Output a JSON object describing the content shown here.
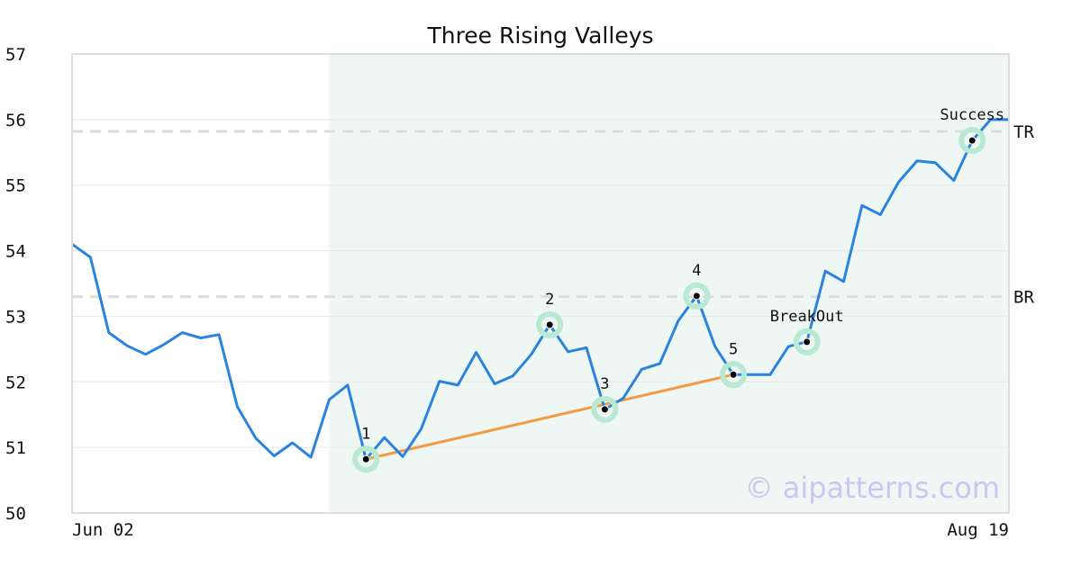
{
  "chart_data": {
    "type": "line",
    "title": "Three Rising Valleys",
    "xlabel": "",
    "ylabel": "",
    "ylim": [
      50,
      57
    ],
    "yticks": [
      "50",
      "51",
      "52",
      "53",
      "54",
      "55",
      "56",
      "57"
    ],
    "x_tick_labels": [
      "Jun 02",
      "Aug 19"
    ],
    "grid": true,
    "series": [
      {
        "color": "#2b83e0",
        "values": [
          54.1,
          53.9,
          52.75,
          52.55,
          52.42,
          52.57,
          52.75,
          52.67,
          52.72,
          51.62,
          51.14,
          50.87,
          51.07,
          50.85,
          51.73,
          51.95,
          50.82,
          51.15,
          50.86,
          51.28,
          52.01,
          51.95,
          52.45,
          51.97,
          52.09,
          52.42,
          52.87,
          52.46,
          52.52,
          51.58,
          51.75,
          52.19,
          52.28,
          52.93,
          53.31,
          52.54,
          52.11,
          52.11,
          52.11,
          52.54,
          52.61,
          53.69,
          53.53,
          54.69,
          54.55,
          55.05,
          55.37,
          55.34,
          55.07,
          55.68,
          56.0,
          56.0
        ]
      }
    ],
    "highlight_region": {
      "start_index": 14,
      "end_index": 51,
      "color": "#eef7f3"
    },
    "levels": [
      {
        "label": "TR",
        "value": 55.82
      },
      {
        "label": "BR",
        "value": 53.3
      }
    ],
    "trendline": {
      "from_index": 16,
      "to_index": 36,
      "color": "#f39a45"
    },
    "markers": [
      {
        "label": "1",
        "index": 16,
        "value": 50.82,
        "label_pos": "above"
      },
      {
        "label": "2",
        "index": 26,
        "value": 52.87,
        "label_pos": "above"
      },
      {
        "label": "3",
        "index": 29,
        "value": 51.58,
        "label_pos": "above"
      },
      {
        "label": "4",
        "index": 34,
        "value": 53.31,
        "label_pos": "above"
      },
      {
        "label": "5",
        "index": 36,
        "value": 52.11,
        "label_pos": "above"
      },
      {
        "label": "BreakOut",
        "index": 40,
        "value": 52.61,
        "label_pos": "above"
      },
      {
        "label": "Success",
        "index": 49,
        "value": 55.68,
        "label_pos": "above"
      }
    ],
    "watermark": "© aipatterns.com",
    "colors": {
      "line": "#2b83e0",
      "level_dash": "#dddddd",
      "grid": "#e8e8e8",
      "marker_halo": "#b9e8d3",
      "marker_dot": "#000000"
    }
  }
}
